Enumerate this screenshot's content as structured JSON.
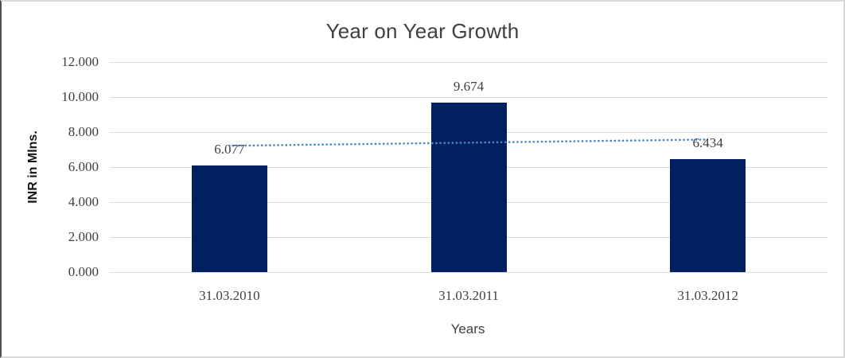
{
  "chart_data": {
    "type": "bar",
    "title": "Year on Year Growth",
    "xlabel": "Years",
    "ylabel": "INR in Mlns.",
    "categories": [
      "31.03.2010",
      "31.03.2011",
      "31.03.2012"
    ],
    "values": [
      6.077,
      9.674,
      6.434
    ],
    "value_labels": [
      "6.077",
      "9.674",
      "6.434"
    ],
    "y_ticks": [
      "0.000",
      "2.000",
      "4.000",
      "6.000",
      "8.000",
      "10.000",
      "12.000"
    ],
    "ylim": [
      0,
      12
    ],
    "y_tick_step": 2,
    "grid": true,
    "legend_position": "none",
    "trendline": {
      "type": "linear",
      "style": "dotted"
    },
    "colors": {
      "bar": "#002060",
      "trendline": "#4a86c8",
      "gridline": "#d9d9d9",
      "title_text": "#404040",
      "tick_text": "#3f3f3f"
    }
  }
}
